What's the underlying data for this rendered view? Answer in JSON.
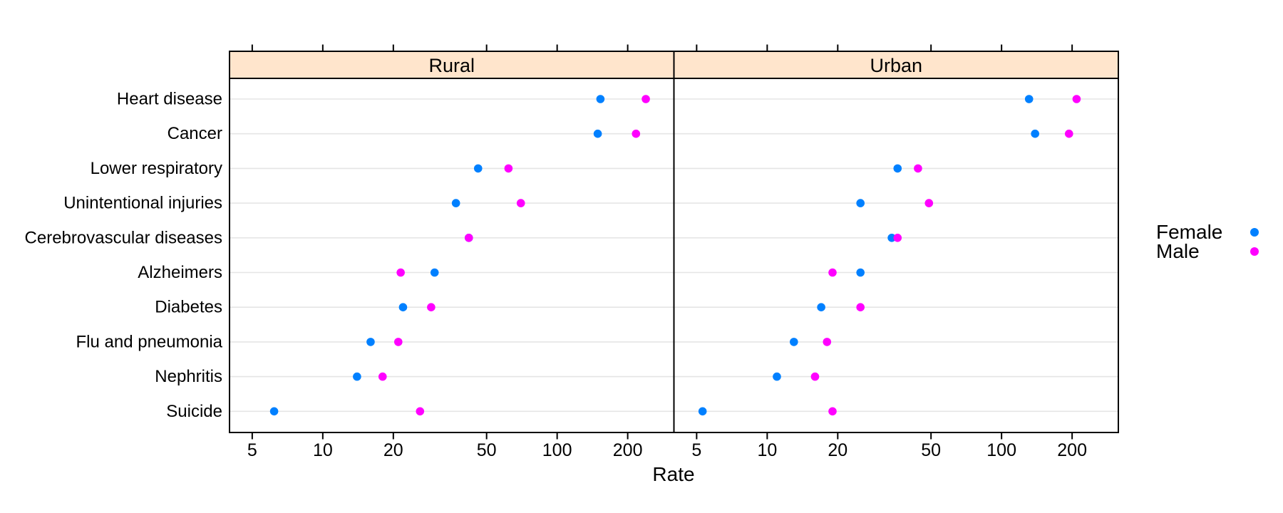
{
  "chart_data": {
    "type": "scatter",
    "variant": "lattice-dotplot",
    "title": "",
    "xlabel": "Rate",
    "ylabel": "",
    "x_scale": "log",
    "x_ticks": [
      5,
      10,
      20,
      50,
      100,
      200
    ],
    "x_domain": [
      4.0,
      315
    ],
    "grid": "horizontal-reference-lines",
    "panels": [
      "Rural",
      "Urban"
    ],
    "categories": [
      "Heart disease",
      "Cancer",
      "Lower respiratory",
      "Unintentional injuries",
      "Cerebrovascular diseases",
      "Alzheimers",
      "Diabetes",
      "Flu and pneumonia",
      "Nephritis",
      "Suicide"
    ],
    "series": [
      {
        "name": "Female",
        "color": "#0080FF",
        "panel_values": {
          "Rural": [
            153,
            149,
            46,
            37,
            42,
            30,
            22,
            16,
            14,
            6.2
          ],
          "Urban": [
            131,
            139,
            36,
            25,
            34,
            25,
            17,
            13,
            11,
            5.3
          ]
        }
      },
      {
        "name": "Male",
        "color": "#FF00FF",
        "panel_values": {
          "Rural": [
            239,
            217,
            62,
            70,
            42,
            21.5,
            29,
            21,
            18,
            26
          ],
          "Urban": [
            209,
            194,
            44,
            49,
            36,
            19,
            25,
            18,
            16,
            19
          ]
        }
      }
    ],
    "legend": {
      "position": "right",
      "entries": [
        {
          "label": "Female",
          "color": "#0080FF"
        },
        {
          "label": "Male",
          "color": "#FF00FF"
        }
      ]
    },
    "colors": {
      "strip_background": "#FFE5CC",
      "panel_border": "#000000",
      "gridline": "#E5E5E5",
      "text": "#000000",
      "background": "#FFFFFF"
    }
  }
}
